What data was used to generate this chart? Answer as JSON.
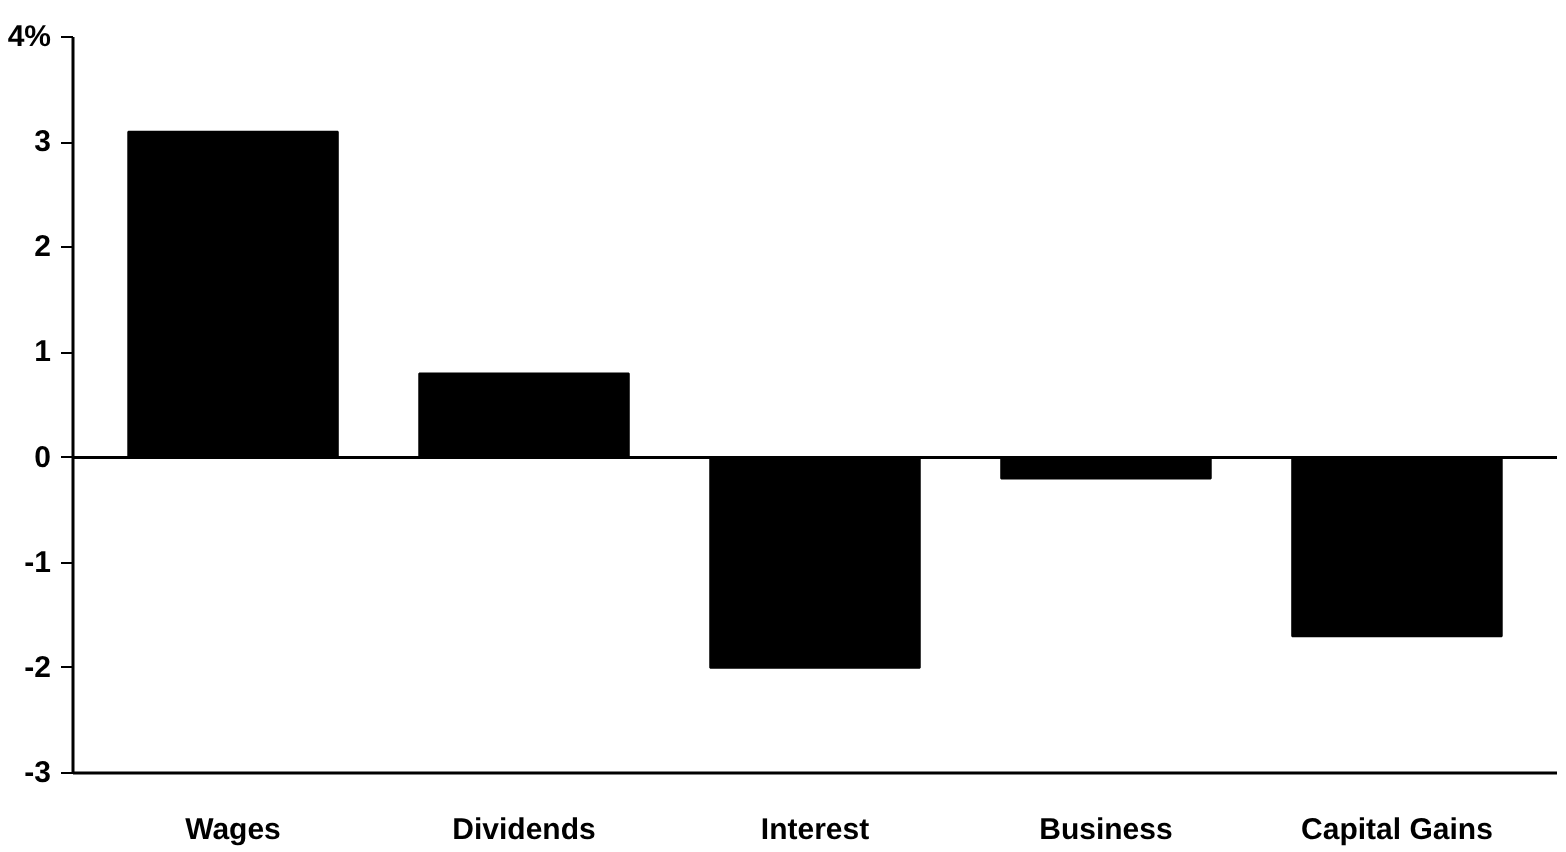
{
  "chart_data": {
    "type": "bar",
    "categories": [
      "Wages",
      "Dividends",
      "Interest",
      "Business",
      "Capital Gains"
    ],
    "values": [
      3.1,
      0.8,
      -2.0,
      -0.2,
      -1.7
    ],
    "color": "#000000",
    "ylim": [
      -3,
      4
    ],
    "yticks": [
      {
        "value": 4,
        "label": "4%"
      },
      3,
      2,
      1,
      0,
      -1,
      -2,
      -3
    ],
    "ref_lines": [
      {
        "axis": "y",
        "value": 0,
        "color": "#000000"
      }
    ],
    "grid": false
  }
}
